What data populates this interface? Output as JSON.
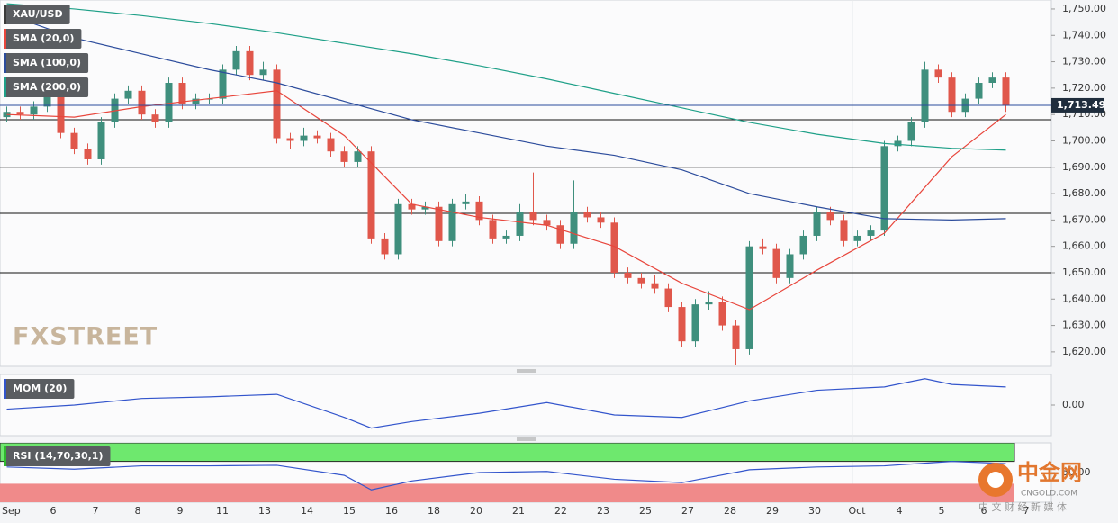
{
  "chart_data": {
    "type": "candlestick",
    "title": "XAU/USD",
    "up_color": "#3f8f7d",
    "down_color": "#e0574b",
    "ylim": [
      1614.5,
      1753.4
    ],
    "yticks": [
      {
        "value": 1620,
        "label": "1,620.00"
      },
      {
        "value": 1630,
        "label": "1,630.00"
      },
      {
        "value": 1640,
        "label": "1,640.00"
      },
      {
        "value": 1650,
        "label": "1,650.00"
      },
      {
        "value": 1660,
        "label": "1,660.00"
      },
      {
        "value": 1670,
        "label": "1,670.00"
      },
      {
        "value": 1680,
        "label": "1,680.00"
      },
      {
        "value": 1690,
        "label": "1,690.00"
      },
      {
        "value": 1700,
        "label": "1,700.00"
      },
      {
        "value": 1710,
        "label": "1,710.00"
      },
      {
        "value": 1720,
        "label": "1,720.00"
      },
      {
        "value": 1730,
        "label": "1,730.00"
      },
      {
        "value": 1740,
        "label": "1,740.00"
      },
      {
        "value": 1750,
        "label": "1,750.00"
      }
    ],
    "x_labels": [
      "Sep",
      "6",
      "7",
      "8",
      "9",
      "11",
      "13",
      "14",
      "15",
      "16",
      "18",
      "20",
      "21",
      "22",
      "23",
      "25",
      "27",
      "28",
      "29",
      "30",
      "Oct",
      "4",
      "5",
      "6",
      "7"
    ],
    "last_price": {
      "value": 1713.49,
      "label": "1,713.49"
    },
    "last_price_color": "#2a4b9b",
    "levels": [
      1708,
      1690,
      1672.5,
      1650
    ],
    "candles": {
      "open": [
        1709,
        1711,
        1710,
        1713,
        1717,
        1703,
        1697,
        1693,
        1707,
        1716,
        1719,
        1710,
        1707,
        1722,
        1714,
        1716,
        1716,
        1727,
        1734,
        1725,
        1727,
        1701,
        1700,
        1702,
        1701,
        1696,
        1692,
        1696,
        1663,
        1657,
        1676,
        1674,
        1675,
        1662,
        1676,
        1677,
        1670,
        1663,
        1664,
        1673,
        1670,
        1668,
        1661,
        1673,
        1671,
        1669,
        1650,
        1648,
        1646,
        1644,
        1637,
        1624,
        1638,
        1639,
        1630,
        1621,
        1660,
        1659,
        1648,
        1657,
        1664,
        1673,
        1670,
        1662,
        1664,
        1666,
        1698,
        1700,
        1707,
        1727,
        1724,
        1711,
        1716,
        1722,
        1724
      ],
      "high": [
        1713,
        1713,
        1715,
        1719,
        1719,
        1705,
        1699,
        1709,
        1718,
        1721,
        1721,
        1712,
        1724,
        1724,
        1718,
        1718,
        1729,
        1736,
        1736,
        1730,
        1729,
        1703,
        1705,
        1704,
        1703,
        1698,
        1698,
        1698,
        1665,
        1678,
        1678,
        1677,
        1677,
        1678,
        1680,
        1679,
        1672,
        1666,
        1676,
        1688,
        1672,
        1670,
        1685,
        1675,
        1673,
        1671,
        1652,
        1650,
        1649,
        1646,
        1639,
        1640,
        1643,
        1641,
        1632,
        1662,
        1663,
        1661,
        1659,
        1666,
        1675,
        1675,
        1672,
        1666,
        1668,
        1700,
        1702,
        1709,
        1730,
        1729,
        1726,
        1718,
        1724,
        1726,
        1726
      ],
      "low": [
        1707,
        1708,
        1708,
        1711,
        1701,
        1695,
        1691,
        1691,
        1705,
        1714,
        1708,
        1705,
        1705,
        1712,
        1712,
        1714,
        1714,
        1725,
        1723,
        1723,
        1699,
        1697,
        1698,
        1699,
        1694,
        1690,
        1690,
        1661,
        1655,
        1655,
        1672,
        1672,
        1660,
        1660,
        1674,
        1668,
        1661,
        1661,
        1662,
        1668,
        1666,
        1659,
        1659,
        1669,
        1667,
        1648,
        1646,
        1644,
        1642,
        1635,
        1622,
        1622,
        1636,
        1628,
        1615,
        1619,
        1657,
        1646,
        1646,
        1655,
        1662,
        1668,
        1660,
        1660,
        1662,
        1664,
        1696,
        1698,
        1705,
        1722,
        1709,
        1709,
        1714,
        1720,
        1711
      ],
      "close": [
        1711,
        1710,
        1713,
        1717,
        1703,
        1697,
        1693,
        1707,
        1716,
        1719,
        1710,
        1707,
        1722,
        1714,
        1716,
        1716,
        1727,
        1734,
        1725,
        1727,
        1701,
        1700,
        1702,
        1701,
        1696,
        1692,
        1696,
        1663,
        1657,
        1676,
        1674,
        1675,
        1662,
        1676,
        1677,
        1670,
        1663,
        1664,
        1673,
        1670,
        1668,
        1661,
        1673,
        1671,
        1669,
        1650,
        1648,
        1646,
        1644,
        1637,
        1624,
        1638,
        1639,
        1630,
        1621,
        1660,
        1659,
        1648,
        1657,
        1664,
        1673,
        1670,
        1662,
        1664,
        1666,
        1698,
        1700,
        1707,
        1727,
        1724,
        1711,
        1716,
        1722,
        1724,
        1713.49
      ]
    },
    "series": [
      {
        "name": "SMA (20,0)",
        "color": "#e8463c",
        "x": [
          0,
          5,
          10,
          15,
          20,
          25,
          30,
          35,
          40,
          45,
          50,
          55,
          60,
          65,
          70,
          74
        ],
        "values": [
          1710,
          1709,
          1713,
          1716,
          1719,
          1702,
          1676,
          1671,
          1668,
          1660,
          1646,
          1636,
          1651,
          1665,
          1694,
          1710
        ]
      },
      {
        "name": "SMA (100,0)",
        "color": "#2c4c9c",
        "x": [
          0,
          5,
          10,
          15,
          20,
          25,
          30,
          35,
          40,
          45,
          50,
          55,
          60,
          65,
          70,
          74
        ],
        "values": [
          1748,
          1739,
          1733,
          1727,
          1722,
          1715,
          1708,
          1703,
          1698,
          1694.5,
          1689,
          1680,
          1675,
          1670.5,
          1670,
          1670.5
        ]
      },
      {
        "name": "SMA (200,0)",
        "color": "#1fa088",
        "x": [
          0,
          5,
          10,
          15,
          20,
          25,
          30,
          35,
          40,
          45,
          50,
          55,
          60,
          65,
          70,
          74
        ],
        "values": [
          1752,
          1750,
          1747.5,
          1744.5,
          1741,
          1737,
          1733,
          1728.5,
          1723.5,
          1718,
          1712.5,
          1707,
          1702.5,
          1699,
          1697.2,
          1696.5
        ]
      }
    ],
    "panels": [
      {
        "name": "MOM (20)",
        "color": "#3355cc",
        "ylim": [
          -35,
          35
        ],
        "yticks": [
          {
            "value": 0,
            "label": "0.00"
          }
        ],
        "x": [
          0,
          5,
          10,
          15,
          20,
          25,
          27,
          30,
          35,
          40,
          45,
          50,
          55,
          60,
          65,
          68,
          70,
          74
        ],
        "values": [
          -5,
          0,
          8,
          10,
          13,
          -15,
          -28,
          -20,
          -10,
          3,
          -12,
          -15,
          5,
          18,
          22,
          32,
          25,
          22
        ]
      },
      {
        "name": "RSI (14,70,30,1)",
        "color": "#3355cc",
        "ylim": [
          0,
          100
        ],
        "overbought": 70,
        "oversold": 30,
        "yticks": [
          {
            "value": 50,
            "label": "50.00"
          }
        ],
        "x": [
          0,
          5,
          10,
          15,
          20,
          25,
          27,
          30,
          35,
          40,
          45,
          50,
          55,
          60,
          65,
          70,
          74
        ],
        "values": [
          60,
          56,
          62,
          62,
          63,
          45,
          19,
          35,
          50,
          52,
          38,
          32,
          55,
          60,
          62,
          70,
          66
        ]
      }
    ],
    "watermark": "FXSTREET",
    "logo": {
      "name": "中金网",
      "site": "CNGOLD.COM",
      "slogan": "中 文 财 经 新 媒 体"
    }
  }
}
